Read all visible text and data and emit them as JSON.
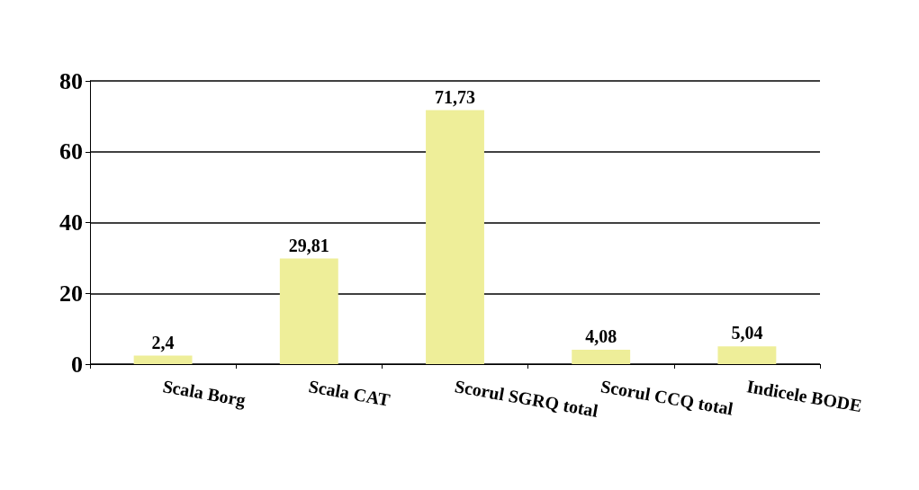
{
  "chart_data": {
    "type": "bar",
    "categories": [
      "Scala Borg",
      "Scala CAT",
      "Scorul SGRQ total",
      "Scorul CCQ total",
      "Indicele BODE"
    ],
    "values": [
      2.4,
      29.81,
      71.73,
      4.08,
      5.04
    ],
    "value_labels": [
      "2,4",
      "29,81",
      "71,73",
      "4,08",
      "5,04"
    ],
    "color": "#eeee99",
    "ylim": [
      0,
      80
    ],
    "yticks": [
      0,
      20,
      40,
      60,
      80
    ],
    "grid": "y"
  }
}
